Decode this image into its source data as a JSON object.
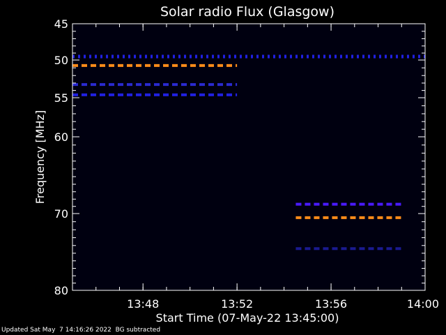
{
  "chart_data": {
    "type": "heatmap",
    "title": "Solar radio Flux (Glasgow)",
    "xlabel": "Start Time (07-May-22 13:45:00)",
    "ylabel": "Frequency [MHz]",
    "x_unit": "minutes",
    "xlim": [
      "13:45",
      "14:00"
    ],
    "ylim": [
      45,
      80
    ],
    "x_ticks": [
      "13:48",
      "13:52",
      "13:56",
      "14:00"
    ],
    "y_ticks": [
      45,
      50,
      55,
      60,
      70,
      80
    ],
    "background_color": "#000010",
    "series": [
      {
        "color": "#ff8c1a",
        "frequency": 50.7,
        "start": "13:45",
        "end": "13:52",
        "style": "dashed"
      },
      {
        "color": "#2020e0",
        "frequency": 49.5,
        "start": "13:45",
        "end": "14:00",
        "style": "dotted"
      },
      {
        "color": "#2a2ad0",
        "frequency": 53.2,
        "start": "13:45",
        "end": "13:52",
        "style": "dashed"
      },
      {
        "color": "#2020e0",
        "frequency": 54.6,
        "start": "13:45",
        "end": "13:52",
        "style": "dashed"
      },
      {
        "color": "#4a1aff",
        "frequency": 68.7,
        "start": "13:54.5",
        "end": "13:59",
        "style": "dashed"
      },
      {
        "color": "#ff8c1a",
        "frequency": 70.5,
        "start": "13:54.5",
        "end": "13:59",
        "style": "dashed"
      },
      {
        "color": "#1a1a90",
        "frequency": 74.4,
        "start": "13:54.5",
        "end": "13:59",
        "style": "dashed"
      }
    ]
  },
  "footer": {
    "updated": "Updated Sat May  7 14:16:26 2022",
    "note": "BG subtracted"
  }
}
